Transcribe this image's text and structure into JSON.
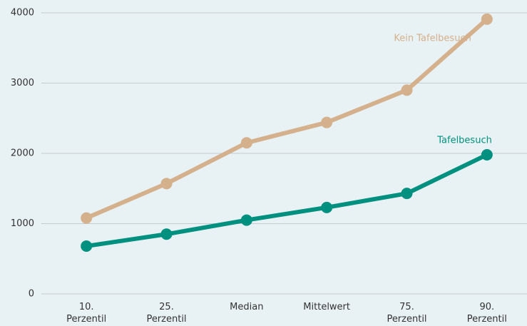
{
  "chart_data": {
    "type": "line",
    "categories": [
      "10. Perzentil",
      "25. Perzentil",
      "Median",
      "Mittelwert",
      "75. Perzentil",
      "90. Perzentil"
    ],
    "series": [
      {
        "name": "Kein Tafelbesuch",
        "color": "#d4b08c",
        "values": [
          1080,
          1570,
          2150,
          2440,
          2900,
          3910
        ]
      },
      {
        "name": "Tafelbesuch",
        "color": "#00907f",
        "values": [
          680,
          850,
          1050,
          1230,
          1430,
          1980
        ]
      }
    ],
    "ylim": [
      0,
      4000
    ],
    "yticks": [
      0,
      1000,
      2000,
      3000,
      4000
    ],
    "grid": true
  }
}
